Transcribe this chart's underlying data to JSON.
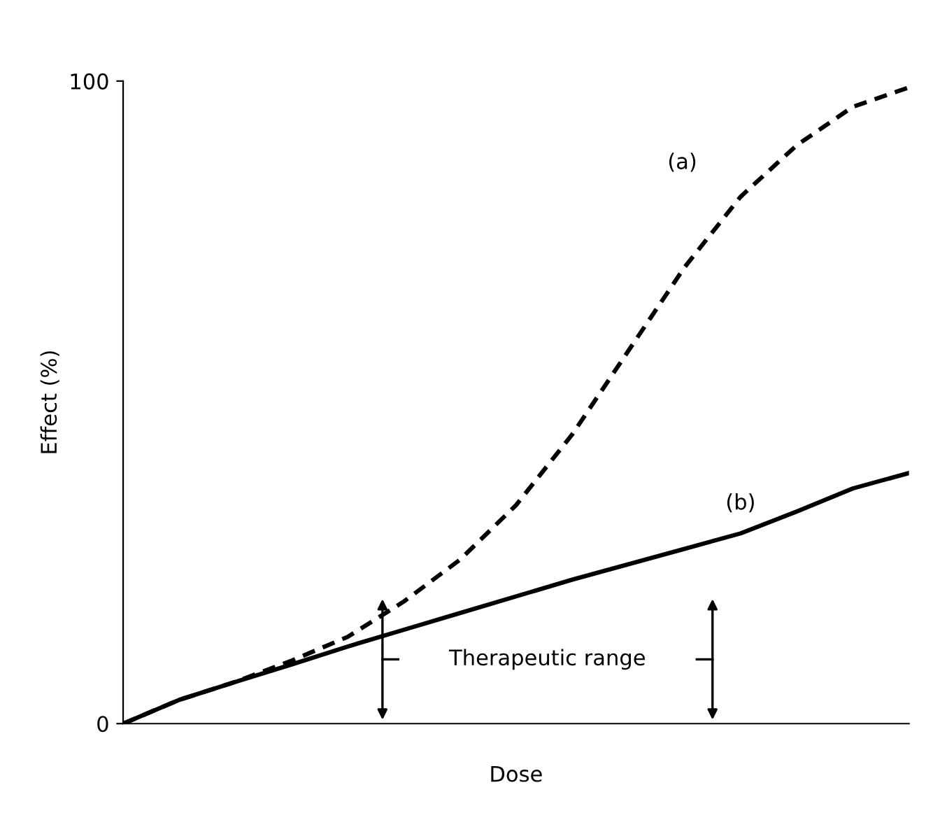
{
  "chart_data": {
    "type": "line",
    "xlabel": "Dose",
    "ylabel": "Effect (%)",
    "categories": [
      null,
      null,
      null,
      null,
      null,
      null,
      null,
      null,
      null,
      null,
      null,
      null,
      null,
      null,
      null
    ],
    "series": [
      {
        "name": "(a)",
        "color": "#000000",
        "line_style": "dashed",
        "values": [
          0,
          3.7,
          6.5,
          9.8,
          13.5,
          19,
          25.5,
          34,
          45,
          58,
          71,
          82,
          90,
          96,
          99
        ]
      },
      {
        "name": "(b)",
        "color": "#000000",
        "line_style": "solid",
        "values": [
          0,
          3.7,
          6.5,
          9.2,
          12,
          14.6,
          17.2,
          19.8,
          22.4,
          24.8,
          27.2,
          29.6,
          33,
          36.6,
          39
        ]
      }
    ],
    "ylim": [
      0,
      100
    ],
    "yticks": [
      0,
      100
    ],
    "grid": false,
    "legend": false,
    "marker": "none",
    "annotations": [
      "Therapeutic range"
    ]
  }
}
